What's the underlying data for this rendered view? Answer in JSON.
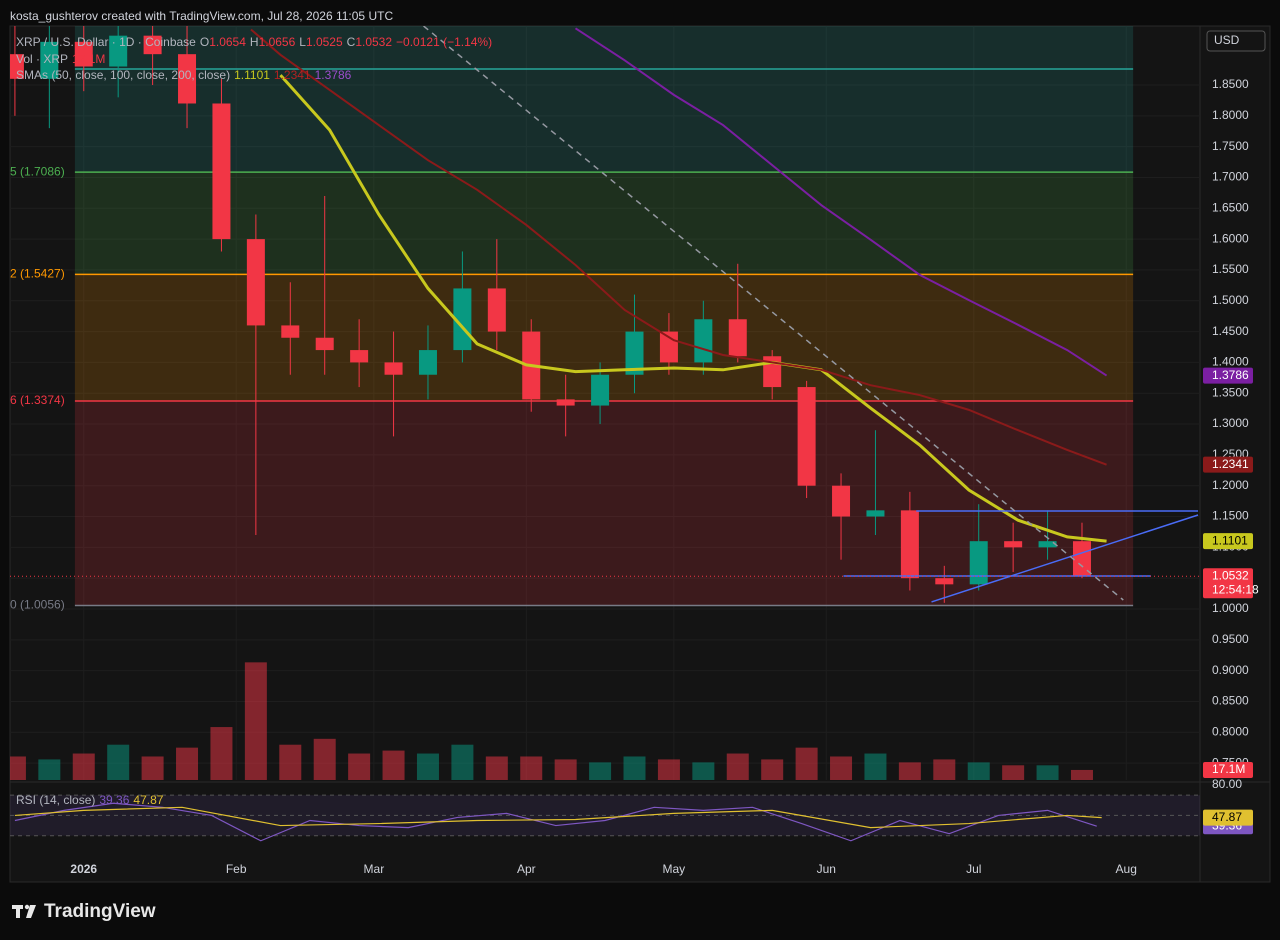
{
  "header": "kosta_gushterov created with TradingView.com, Jul 28, 2026 11:05 UTC",
  "logo": "TradingView",
  "currency": "USD",
  "countdown": "12:54:18",
  "chart_data": [
    {
      "type": "candlestick",
      "title": "XRP / U.S. Dollar · 1D · Coinbase",
      "ohlc_legend": [
        "O",
        "1.0654",
        "H",
        "1.0656",
        "L",
        "1.0525",
        "C",
        "1.0532",
        "−0.0121 (−1.14%)"
      ],
      "indicator": "SMAs (50, close, 100, close, 200, close)",
      "xlim": [
        -15,
        227
      ],
      "xticks": [
        {
          "value": 0,
          "label": "2026"
        },
        {
          "value": 31,
          "label": "Feb"
        },
        {
          "value": 59,
          "label": "Mar"
        },
        {
          "value": 90,
          "label": "Apr"
        },
        {
          "value": 120,
          "label": "May"
        },
        {
          "value": 151,
          "label": "Jun"
        },
        {
          "value": 181,
          "label": "Jul"
        },
        {
          "value": 212,
          "label": "Aug"
        }
      ],
      "ylim": [
        0.7226,
        1.9457
      ],
      "yticks": [
        {
          "value": 1.85,
          "label": "1.8500"
        },
        {
          "value": 1.8,
          "label": "1.8000"
        },
        {
          "value": 1.75,
          "label": "1.7500"
        },
        {
          "value": 1.7,
          "label": "1.7000"
        },
        {
          "value": 1.65,
          "label": "1.6500"
        },
        {
          "value": 1.6,
          "label": "1.6000"
        },
        {
          "value": 1.55,
          "label": "1.5500"
        },
        {
          "value": 1.5,
          "label": "1.5000"
        },
        {
          "value": 1.45,
          "label": "1.4500"
        },
        {
          "value": 1.4,
          "label": "1.4000"
        },
        {
          "value": 1.35,
          "label": "1.3500"
        },
        {
          "value": 1.3,
          "label": "1.3000"
        },
        {
          "value": 1.25,
          "label": "1.2500"
        },
        {
          "value": 1.2,
          "label": "1.2000"
        },
        {
          "value": 1.15,
          "label": "1.1500"
        },
        {
          "value": 1.1,
          "label": "1.1000"
        },
        {
          "value": 1.05,
          "label": "1.0500"
        },
        {
          "value": 1.0,
          "label": "1.0000"
        },
        {
          "value": 0.95,
          "label": "0.9500"
        },
        {
          "value": 0.9,
          "label": "0.9000"
        },
        {
          "value": 0.85,
          "label": "0.8500"
        },
        {
          "value": 0.8,
          "label": "0.8000"
        },
        {
          "value": 0.75,
          "label": "0.7500"
        }
      ],
      "grid": true,
      "up_color": "#089981",
      "down_color": "#f23645",
      "x": [
        -14,
        -7,
        0,
        7,
        14,
        21,
        28,
        35,
        42,
        49,
        56,
        63,
        70,
        77,
        84,
        91,
        98,
        105,
        112,
        119,
        126,
        133,
        140,
        147,
        154,
        161,
        168,
        175,
        182,
        189,
        196,
        203
      ],
      "open": [
        1.9,
        1.86,
        1.92,
        1.88,
        1.93,
        1.9,
        1.82,
        1.6,
        1.46,
        1.44,
        1.42,
        1.4,
        1.38,
        1.42,
        1.52,
        1.45,
        1.34,
        1.33,
        1.38,
        1.45,
        1.4,
        1.47,
        1.41,
        1.36,
        1.2,
        1.15,
        1.16,
        1.05,
        1.04,
        1.11,
        1.1,
        1.11
      ],
      "high": [
        1.97,
        1.95,
        1.98,
        1.96,
        1.97,
        1.95,
        1.86,
        1.64,
        1.53,
        1.67,
        1.47,
        1.45,
        1.46,
        1.58,
        1.6,
        1.47,
        1.38,
        1.4,
        1.51,
        1.48,
        1.5,
        1.56,
        1.42,
        1.37,
        1.22,
        1.29,
        1.19,
        1.07,
        1.17,
        1.14,
        1.16,
        1.14
      ],
      "low": [
        1.8,
        1.78,
        1.84,
        1.83,
        1.85,
        1.78,
        1.58,
        1.12,
        1.38,
        1.38,
        1.36,
        1.28,
        1.34,
        1.4,
        1.42,
        1.32,
        1.28,
        1.3,
        1.35,
        1.38,
        1.38,
        1.4,
        1.34,
        1.18,
        1.08,
        1.12,
        1.03,
        1.01,
        1.03,
        1.06,
        1.08,
        1.05
      ],
      "close": [
        1.86,
        1.92,
        1.88,
        1.93,
        1.9,
        1.82,
        1.6,
        1.46,
        1.44,
        1.42,
        1.4,
        1.38,
        1.42,
        1.52,
        1.45,
        1.34,
        1.33,
        1.38,
        1.45,
        1.4,
        1.47,
        1.41,
        1.36,
        1.2,
        1.15,
        1.16,
        1.05,
        1.04,
        1.11,
        1.1,
        1.11,
        1.0532
      ],
      "lines": [
        {
          "color": "#c8c81e",
          "text_color": "#000000",
          "x": [
            40,
            50,
            60,
            70,
            80,
            90,
            100,
            110,
            120,
            130,
            140,
            150,
            160,
            170,
            180,
            190,
            200,
            208
          ],
          "values": [
            1.866,
            1.777,
            1.64,
            1.52,
            1.43,
            1.396,
            1.385,
            1.388,
            1.391,
            1.388,
            1.4,
            1.388,
            1.326,
            1.266,
            1.193,
            1.144,
            1.117,
            1.1101
          ]
        },
        {
          "color": "#8b1a1a",
          "text_color": "#ffffff",
          "x": [
            34,
            40,
            50,
            60,
            70,
            80,
            90,
            100,
            110,
            120,
            130,
            140,
            150,
            160,
            170,
            180,
            190,
            200,
            208
          ],
          "values": [
            1.94,
            1.899,
            1.842,
            1.785,
            1.728,
            1.68,
            1.623,
            1.558,
            1.485,
            1.436,
            1.412,
            1.4,
            1.388,
            1.363,
            1.347,
            1.323,
            1.29,
            1.258,
            1.2341
          ]
        },
        {
          "color": "#7b1fa2",
          "text_color": "#ffffff",
          "x": [
            100,
            110,
            120,
            130,
            140,
            150,
            160,
            170,
            180,
            190,
            200,
            208
          ],
          "values": [
            1.942,
            1.89,
            1.834,
            1.785,
            1.72,
            1.655,
            1.599,
            1.542,
            1.501,
            1.461,
            1.42,
            1.3786
          ]
        }
      ],
      "fib": {
        "x": [
          -1.8,
          213.4
        ],
        "levels": [
          {
            "value": 1.876,
            "color": "#26a69a"
          },
          {
            "value": 1.7086,
            "label": "5 (1.7086)",
            "color": "#4caf50"
          },
          {
            "value": 1.5427,
            "label": "2 (1.5427)",
            "color": "#ff9800"
          },
          {
            "value": 1.3374,
            "label": "6 (1.3374)",
            "color": "#f23645"
          },
          {
            "value": 1.0056,
            "label": "0 (1.0056)",
            "color": "#787b86"
          }
        ]
      },
      "trendlines": [
        {
          "x": [
            169.3,
            226.6
          ],
          "values": [
            1.159,
            1.159
          ],
          "color": "#4a6cf7"
        },
        {
          "x": [
            154.5,
            217
          ],
          "values": [
            1.0535,
            1.0535
          ],
          "color": "#4a6cf7"
        },
        {
          "x": [
            172.4,
            226.6
          ],
          "values": [
            1.0114,
            1.1525
          ],
          "color": "#4a6cf7"
        },
        {
          "x": [
            69.1,
            211.4
          ],
          "values": [
            1.9457,
            1.0146
          ],
          "color": "#9598a1",
          "dashed": true
        }
      ]
    },
    {
      "type": "bar",
      "title": "Vol · XRP",
      "ylim": [
        0,
        340
      ],
      "values": [
        40,
        35,
        45,
        60,
        40,
        55,
        90,
        200,
        60,
        70,
        45,
        50,
        45,
        60,
        40,
        40,
        35,
        30,
        40,
        35,
        30,
        45,
        35,
        55,
        40,
        45,
        30,
        35,
        30,
        25,
        25,
        17.1
      ],
      "last_label": "17.1M"
    },
    {
      "type": "line",
      "title": "RSI (14, close)",
      "ylim": [
        8,
        82
      ],
      "yticks": [
        {
          "value": 80,
          "label": "80.00"
        }
      ],
      "levels": [
        70,
        50,
        30
      ],
      "band_color": "#7e57c2",
      "series": [
        {
          "color": "#7e57c2",
          "x": [
            -14,
            -4,
            6,
            16,
            26,
            36,
            46,
            56,
            66,
            76,
            86,
            96,
            106,
            116,
            126,
            136,
            146,
            156,
            166,
            176,
            186,
            196,
            206
          ],
          "values": [
            45,
            55,
            62,
            58,
            50,
            25,
            45,
            40,
            38,
            48,
            52,
            40,
            45,
            58,
            55,
            58,
            42,
            25,
            45,
            32,
            50,
            55,
            39.36
          ]
        },
        {
          "color": "#e0c030",
          "x": [
            -14,
            0,
            20,
            40,
            60,
            80,
            100,
            120,
            140,
            160,
            180,
            200,
            207
          ],
          "values": [
            50,
            55,
            58,
            40,
            42,
            45,
            46,
            52,
            55,
            38,
            42,
            50,
            47.87
          ]
        }
      ]
    }
  ]
}
